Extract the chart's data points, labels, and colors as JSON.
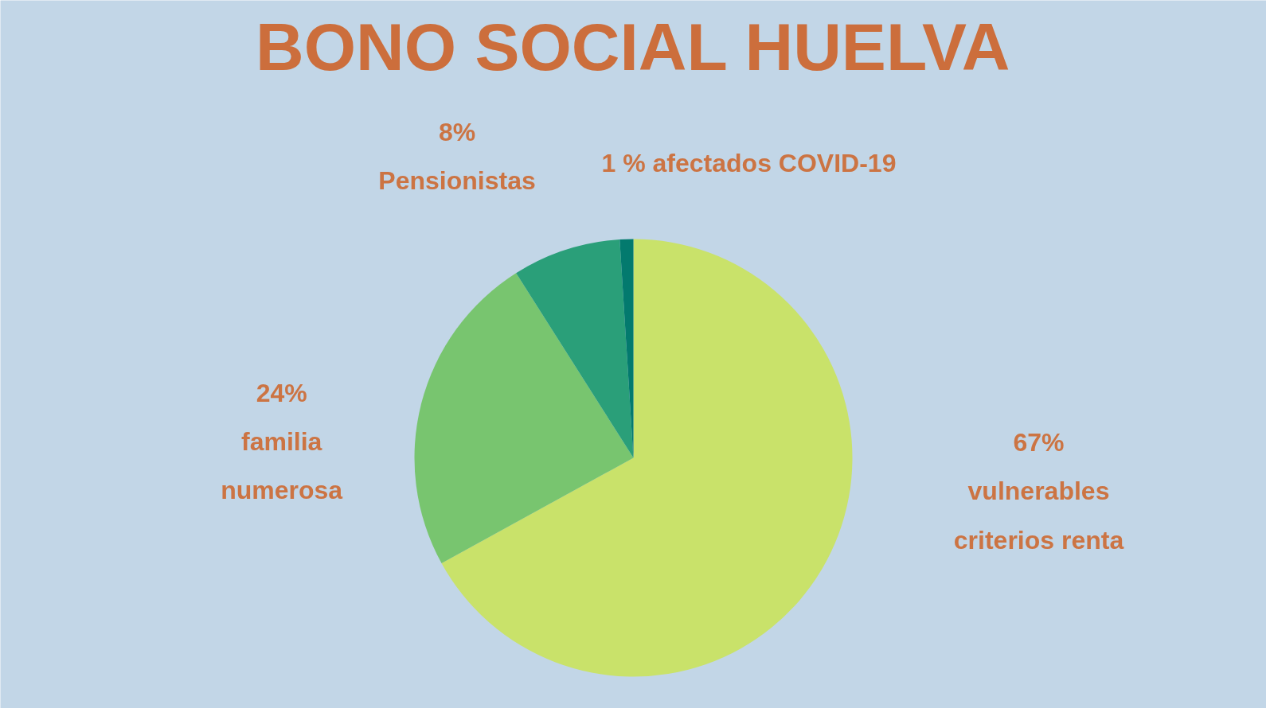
{
  "chart_data": {
    "type": "pie",
    "title": "BONO SOCIAL HUELVA",
    "categories": [
      "vulnerables criterios renta",
      "familia numerosa",
      "Pensionistas",
      "afectados COVID-19"
    ],
    "values": [
      67,
      24,
      8,
      1
    ],
    "value_labels": [
      "67%",
      "24%",
      "8%",
      "1 %"
    ],
    "colors": [
      "#c9e26a",
      "#78c56f",
      "#2a9f79",
      "#037a6e"
    ]
  }
}
